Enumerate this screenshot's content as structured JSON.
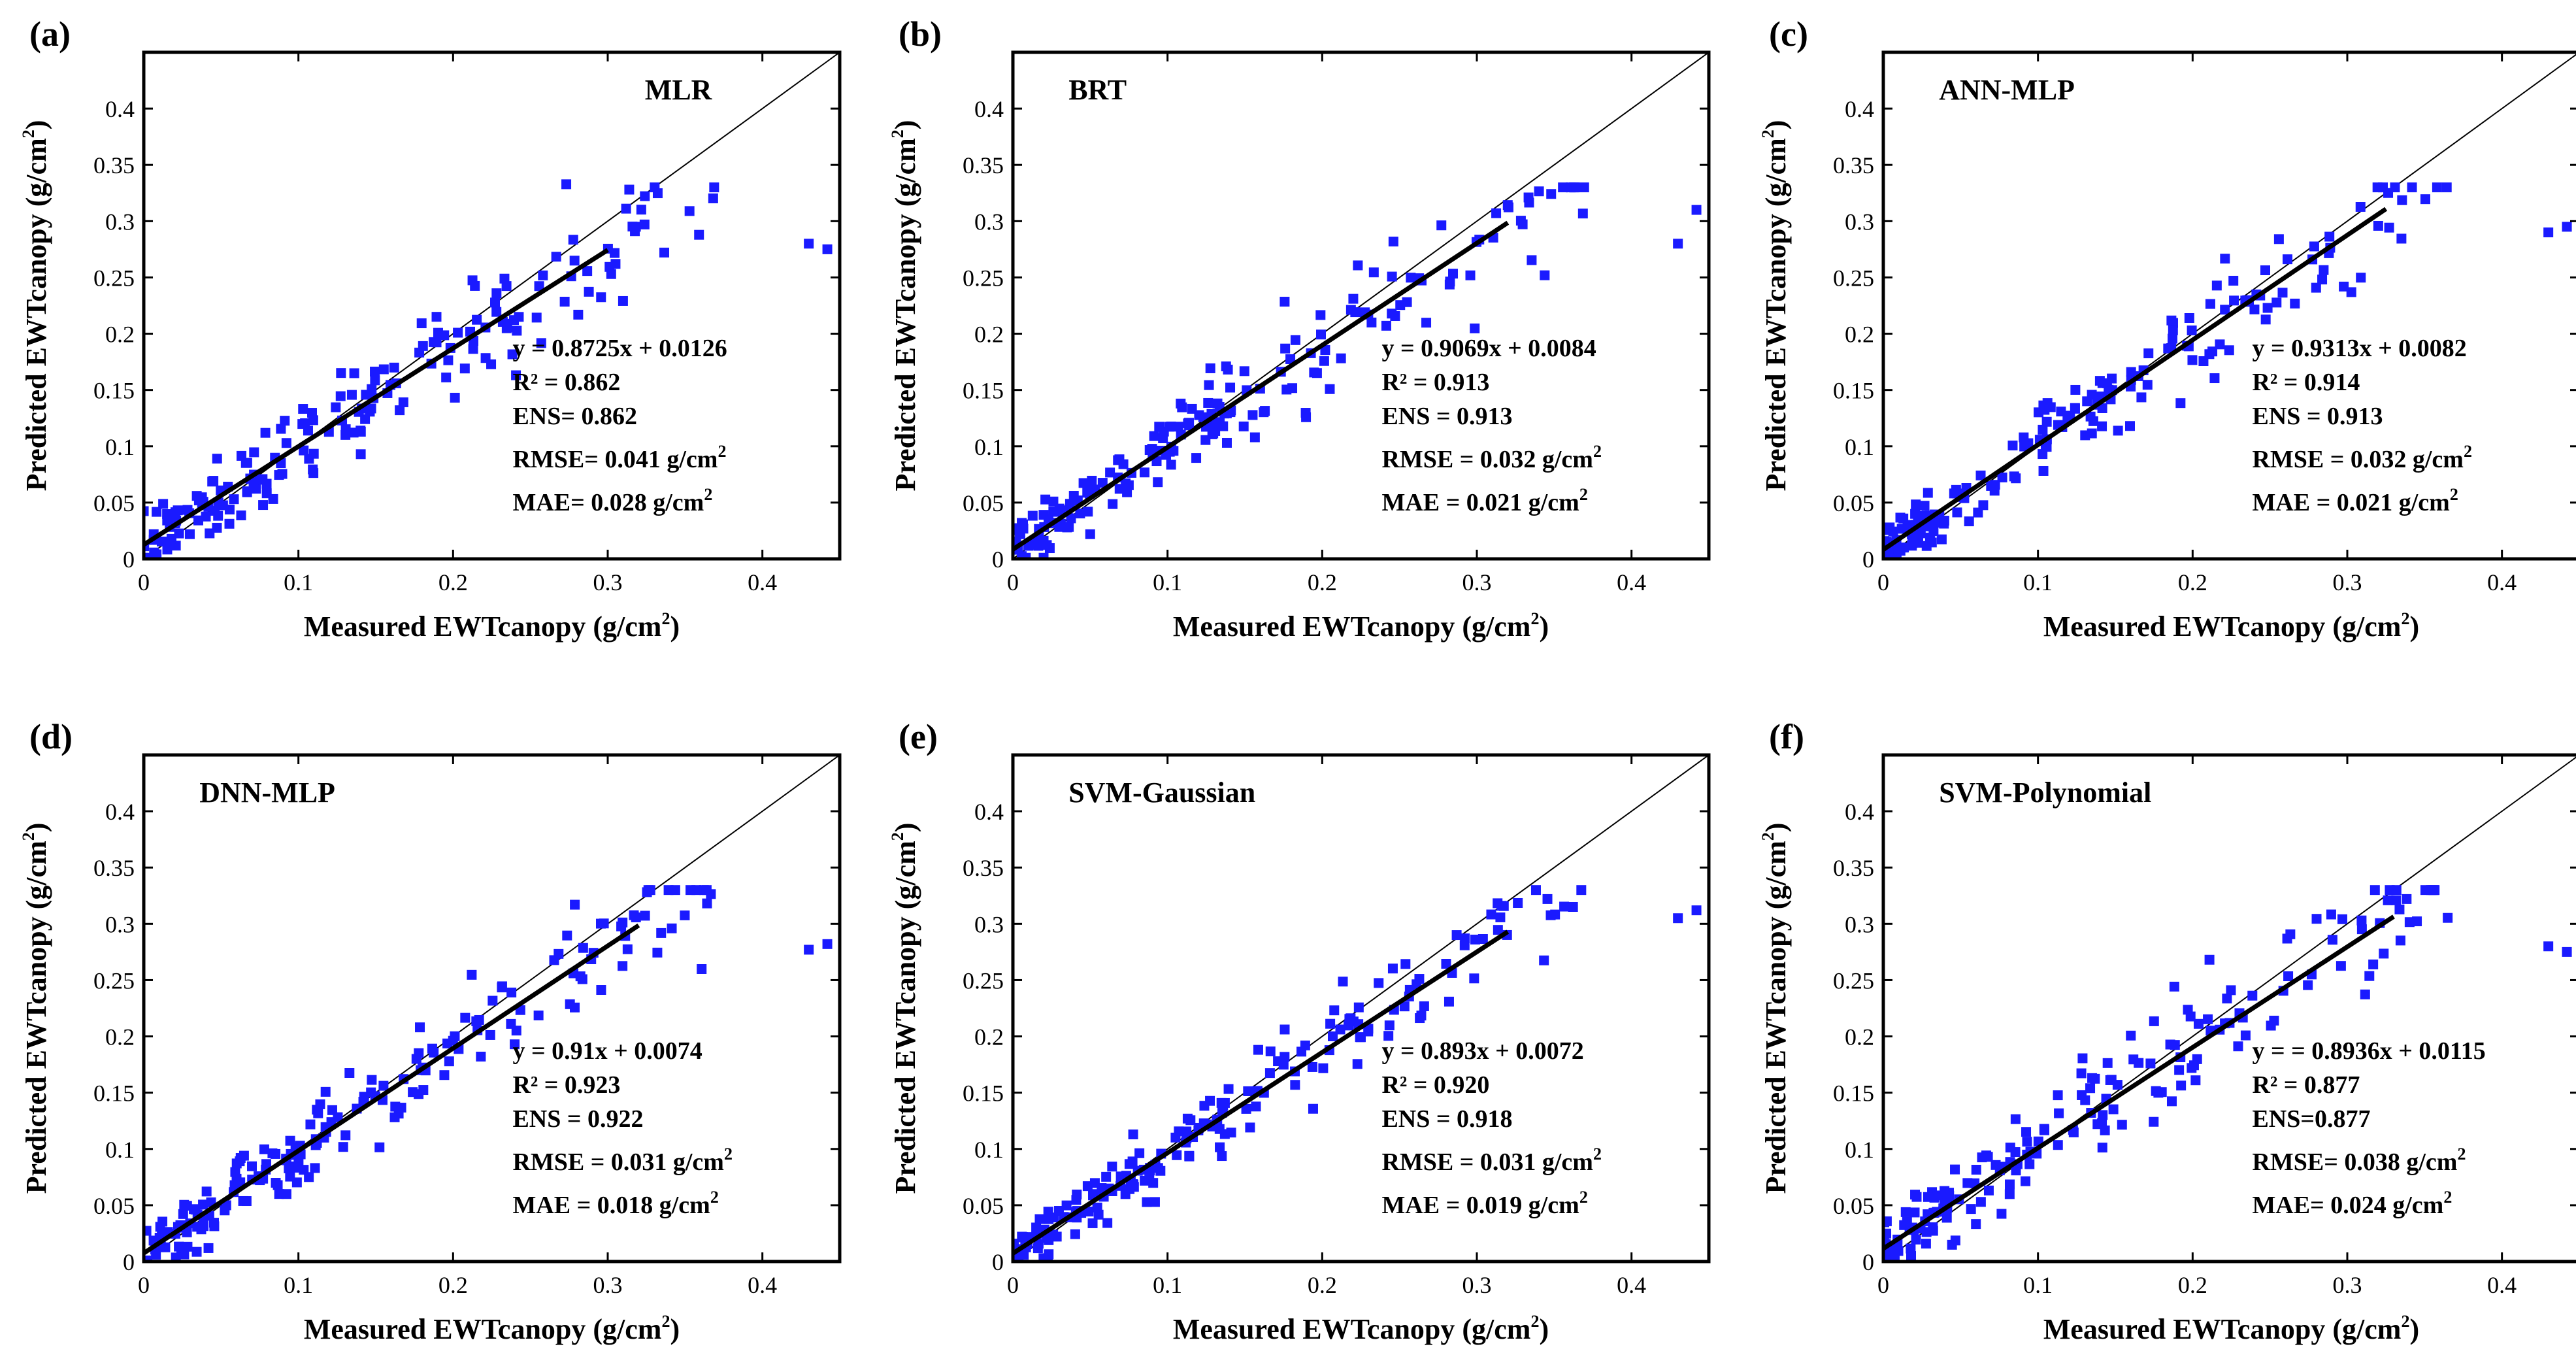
{
  "chart_data": [
    {
      "type": "scatter",
      "panel_label": "(a)",
      "model": "MLR",
      "xlabel": "Measured EWTcanopy (g/cm",
      "ylabel": "Predicted EWTcanopy (g/cm",
      "unit_sup": "2",
      "label_close": ")",
      "xlim": [
        0,
        0.45
      ],
      "ylim": [
        0,
        0.45
      ],
      "x_ticks": [
        "0",
        "0.1",
        "0.2",
        "0.3",
        "0.4"
      ],
      "y_ticks": [
        "0",
        "0.05",
        "0.1",
        "0.15",
        "0.2",
        "0.25",
        "0.3",
        "0.35",
        "0.4"
      ],
      "fit": {
        "slope": 0.8725,
        "intercept": 0.0126,
        "x_range": [
          0,
          0.3
        ]
      },
      "stats": [
        {
          "text": "y = 0.8725x + 0.0126"
        },
        {
          "text": "R² = 0.862"
        },
        {
          "text": "ENS= 0.862"
        },
        {
          "text": "RMSE= 0.041 g/cm",
          "sup": "2"
        },
        {
          "text": "MAE= 0.028 g/cm",
          "sup": "2"
        }
      ],
      "points_seed": 11,
      "noise": 0.025,
      "outlier_y": [
        0.28,
        0.275
      ]
    },
    {
      "type": "scatter",
      "panel_label": "(b)",
      "model": "BRT",
      "xlabel": "Measured EWTcanopy (g/cm",
      "ylabel": "Predicted EWTcanopy (g/cm",
      "unit_sup": "2",
      "label_close": ")",
      "xlim": [
        0,
        0.45
      ],
      "ylim": [
        0,
        0.45
      ],
      "x_ticks": [
        "0",
        "0.1",
        "0.2",
        "0.3",
        "0.4"
      ],
      "y_ticks": [
        "0",
        "0.05",
        "0.1",
        "0.15",
        "0.2",
        "0.25",
        "0.3",
        "0.35",
        "0.4"
      ],
      "fit": {
        "slope": 0.9069,
        "intercept": 0.0084,
        "x_range": [
          0,
          0.32
        ]
      },
      "stats": [
        {
          "text": "y = 0.9069x + 0.0084"
        },
        {
          "text": "R² = 0.913"
        },
        {
          "text": "ENS = 0.913"
        },
        {
          "text": "RMSE = 0.032 g/cm",
          "sup": "2"
        },
        {
          "text": "MAE = 0.021 g/cm",
          "sup": "2"
        }
      ],
      "points_seed": 23,
      "noise": 0.02,
      "outlier_y": [
        0.28,
        0.31
      ]
    },
    {
      "type": "scatter",
      "panel_label": "(c)",
      "model": "ANN-MLP",
      "xlabel": "Measured EWTcanopy (g/cm",
      "ylabel": "Predicted EWTcanopy (g/cm",
      "unit_sup": "2",
      "label_close": ")",
      "xlim": [
        0,
        0.45
      ],
      "ylim": [
        0,
        0.45
      ],
      "x_ticks": [
        "0",
        "0.1",
        "0.2",
        "0.3",
        "0.4"
      ],
      "y_ticks": [
        "0",
        "0.05",
        "0.1",
        "0.15",
        "0.2",
        "0.25",
        "0.3",
        "0.35",
        "0.4"
      ],
      "fit": {
        "slope": 0.9313,
        "intercept": 0.0082,
        "x_range": [
          0,
          0.325
        ]
      },
      "stats": [
        {
          "text": "y = 0.9313x + 0.0082"
        },
        {
          "text": "R² = 0.914"
        },
        {
          "text": "ENS = 0.913"
        },
        {
          "text": "RMSE = 0.032 g/cm",
          "sup": "2"
        },
        {
          "text": "MAE = 0.021 g/cm",
          "sup": "2"
        }
      ],
      "points_seed": 37,
      "noise": 0.02,
      "outlier_y": [
        0.29,
        0.295
      ]
    },
    {
      "type": "scatter",
      "panel_label": "(d)",
      "model": "DNN-MLP",
      "xlabel": "Measured EWTcanopy (g/cm",
      "ylabel": "Predicted EWTcanopy (g/cm",
      "unit_sup": "2",
      "label_close": ")",
      "xlim": [
        0,
        0.45
      ],
      "ylim": [
        0,
        0.45
      ],
      "x_ticks": [
        "0",
        "0.1",
        "0.2",
        "0.3",
        "0.4"
      ],
      "y_ticks": [
        "0",
        "0.05",
        "0.1",
        "0.15",
        "0.2",
        "0.25",
        "0.3",
        "0.35",
        "0.4"
      ],
      "fit": {
        "slope": 0.91,
        "intercept": 0.0074,
        "x_range": [
          0,
          0.32
        ]
      },
      "stats": [
        {
          "text": "y = 0.91x + 0.0074"
        },
        {
          "text": "R² = 0.923"
        },
        {
          "text": "ENS = 0.922"
        },
        {
          "text": "RMSE = 0.031 g/cm",
          "sup": "2"
        },
        {
          "text": "MAE = 0.018 g/cm",
          "sup": "2"
        }
      ],
      "points_seed": 41,
      "noise": 0.019,
      "outlier_y": [
        0.277,
        0.282
      ]
    },
    {
      "type": "scatter",
      "panel_label": "(e)",
      "model": "SVM-Gaussian",
      "xlabel": "Measured EWTcanopy (g/cm",
      "ylabel": "Predicted EWTcanopy (g/cm",
      "unit_sup": "2",
      "label_close": ")",
      "xlim": [
        0,
        0.45
      ],
      "ylim": [
        0,
        0.45
      ],
      "x_ticks": [
        "0",
        "0.1",
        "0.2",
        "0.3",
        "0.4"
      ],
      "y_ticks": [
        "0",
        "0.05",
        "0.1",
        "0.15",
        "0.2",
        "0.25",
        "0.3",
        "0.35",
        "0.4"
      ],
      "fit": {
        "slope": 0.893,
        "intercept": 0.0072,
        "x_range": [
          0,
          0.32
        ]
      },
      "stats": [
        {
          "text": "y = 0.893x + 0.0072"
        },
        {
          "text": "R² = 0.920"
        },
        {
          "text": "ENS = 0.918"
        },
        {
          "text": "RMSE = 0.031 g/cm",
          "sup": "2"
        },
        {
          "text": "MAE = 0.019 g/cm",
          "sup": "2"
        }
      ],
      "points_seed": 53,
      "noise": 0.019,
      "outlier_y": [
        0.305,
        0.312
      ]
    },
    {
      "type": "scatter",
      "panel_label": "(f)",
      "model": "SVM-Polynomial",
      "xlabel": "Measured EWTcanopy (g/cm",
      "ylabel": "Predicted EWTcanopy (g/cm",
      "unit_sup": "2",
      "label_close": ")",
      "xlim": [
        0,
        0.45
      ],
      "ylim": [
        0,
        0.45
      ],
      "x_ticks": [
        "0",
        "0.1",
        "0.2",
        "0.3",
        "0.4"
      ],
      "y_ticks": [
        "0",
        "0.05",
        "0.1",
        "0.15",
        "0.2",
        "0.25",
        "0.3",
        "0.35",
        "0.4"
      ],
      "fit": {
        "slope": 0.8936,
        "intercept": 0.0115,
        "x_range": [
          0,
          0.33
        ]
      },
      "stats": [
        {
          "text": "y = = 0.8936x + 0.0115"
        },
        {
          "text": "R² = 0.877"
        },
        {
          "text": "ENS=0.877"
        },
        {
          "text": "RMSE= 0.038 g/cm",
          "sup": "2"
        },
        {
          "text": "MAE= 0.024 g/cm",
          "sup": "2"
        }
      ],
      "points_seed": 67,
      "noise": 0.024,
      "outlier_y": [
        0.28,
        0.275
      ]
    }
  ],
  "colors": {
    "points": "#1a1aff",
    "fit_line": "#000000",
    "one_to_one": "#000000",
    "axes": "#000000"
  }
}
